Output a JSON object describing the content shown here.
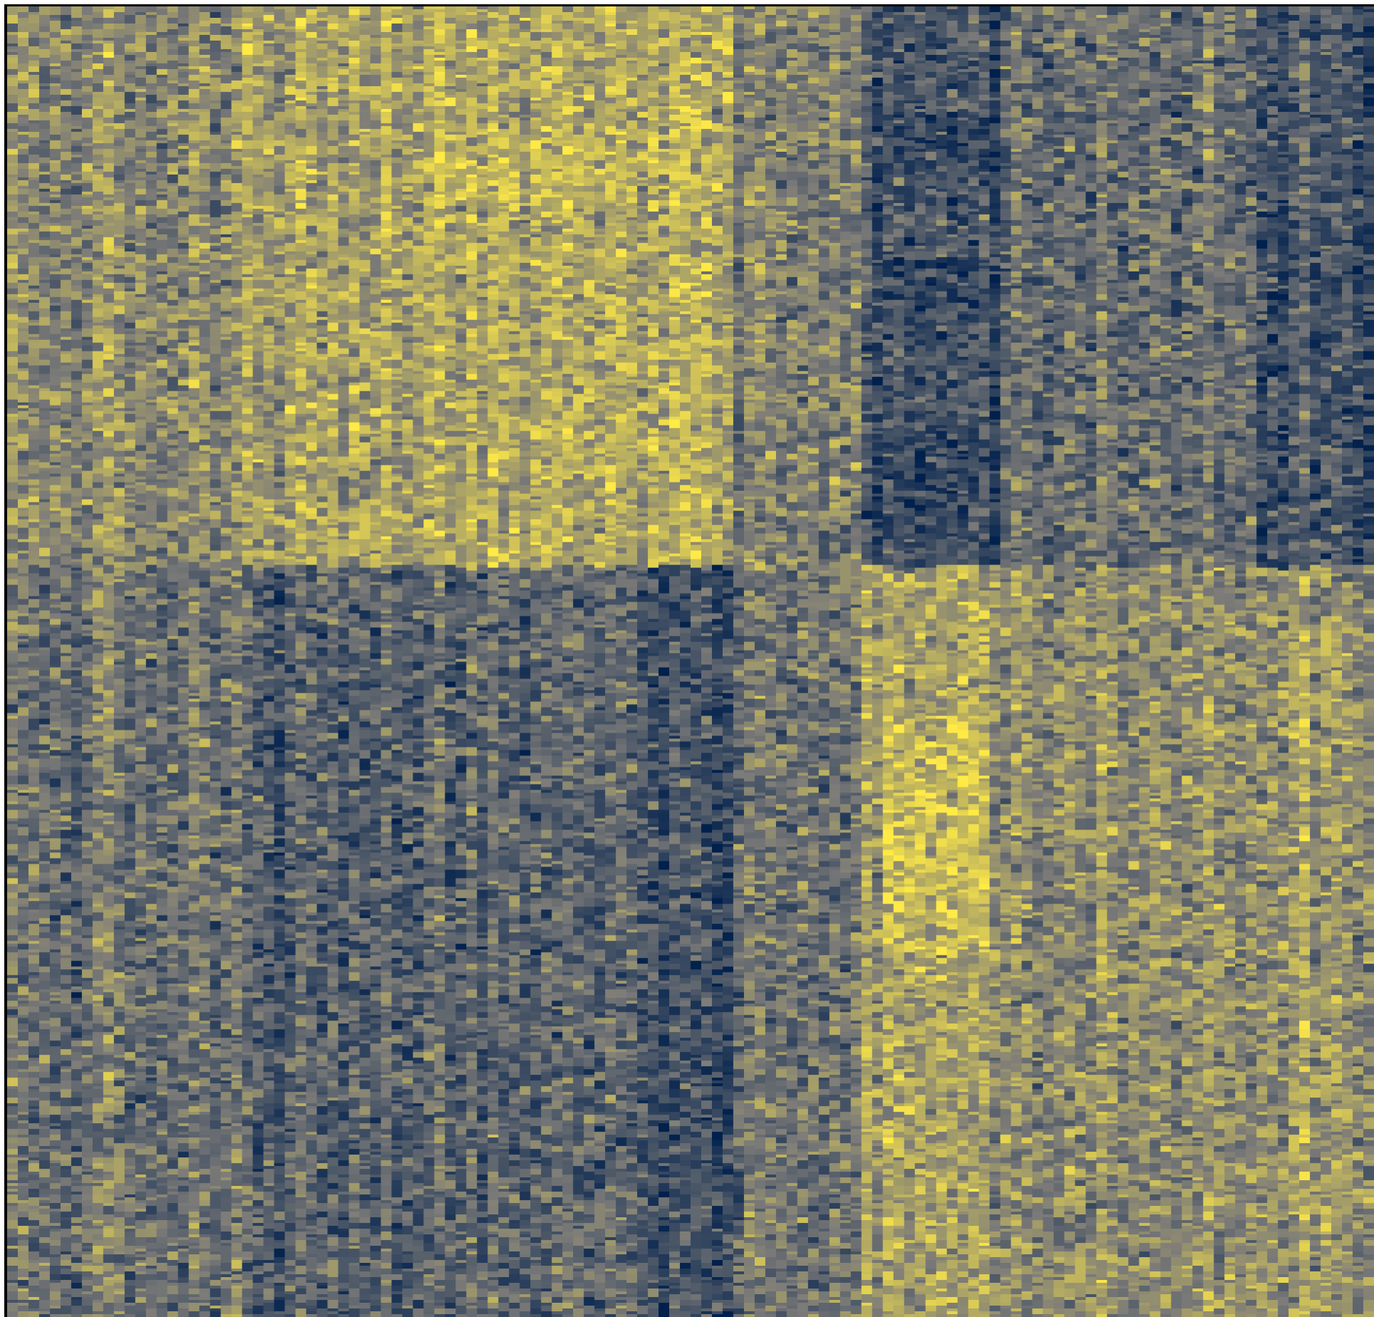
{
  "chart_data": {
    "type": "heatmap",
    "title": "",
    "xlabel": "",
    "ylabel": "",
    "n_columns": 128,
    "colorscale": {
      "low": "#00204d",
      "mid": "#7c7b78",
      "high": "#ffea46"
    },
    "value_range": [
      -2,
      2
    ],
    "column_groups": [
      {
        "cols": [
          0,
          22
        ],
        "block_means": [
          0.3,
          -0.3
        ]
      },
      {
        "cols": [
          22,
          34
        ],
        "block_means": [
          0.8,
          -0.9
        ]
      },
      {
        "cols": [
          34,
          60
        ],
        "block_means": [
          1.0,
          -0.7
        ]
      },
      {
        "cols": [
          60,
          68
        ],
        "block_means": [
          1.2,
          -1.2
        ]
      },
      {
        "cols": [
          68,
          80
        ],
        "block_means": [
          0.3,
          -0.1
        ]
      },
      {
        "cols": [
          80,
          93
        ],
        "block_means": [
          -1.1,
          0.9
        ]
      },
      {
        "cols": [
          93,
          117
        ],
        "block_means": [
          -0.4,
          0.4
        ]
      },
      {
        "cols": [
          117,
          128
        ],
        "block_means": [
          -0.9,
          0.8
        ]
      }
    ],
    "row_split_fraction": 0.425,
    "hotspots": [
      {
        "col_range": [
          82,
          92
        ],
        "row_range": [
          0.08,
          0.12
        ],
        "value": -1.8
      },
      {
        "col_range": [
          82,
          92
        ],
        "row_range": [
          0.19,
          0.24
        ],
        "value": -1.8
      },
      {
        "col_range": [
          82,
          92
        ],
        "row_range": [
          0.32,
          0.4
        ],
        "value": -1.6
      },
      {
        "col_range": [
          82,
          92
        ],
        "row_range": [
          0.54,
          0.72
        ],
        "value": 1.8
      },
      {
        "col_range": [
          40,
          60
        ],
        "row_range": [
          0.09,
          0.15
        ],
        "value": 1.5
      }
    ]
  }
}
